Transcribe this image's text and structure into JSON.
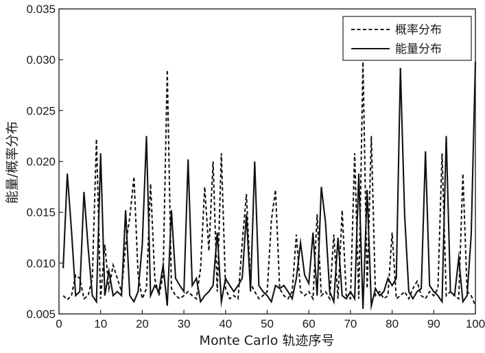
{
  "chart_data": {
    "type": "line",
    "title": "",
    "xlabel": "Monte Carlo 轨迹序号",
    "ylabel": "能量/概率分布",
    "xlim": [
      0,
      100
    ],
    "ylim": [
      0.005,
      0.035
    ],
    "xticks": [
      0,
      10,
      20,
      30,
      40,
      50,
      60,
      70,
      80,
      90,
      100
    ],
    "xtick_labels": [
      "0",
      "10",
      "20",
      "30",
      "40",
      "50",
      "60",
      "70",
      "80",
      "90",
      "100"
    ],
    "yticks": [
      0.005,
      0.01,
      0.015,
      0.02,
      0.025,
      0.03,
      0.035
    ],
    "ytick_labels": [
      "0.005",
      "0.010",
      "0.015",
      "0.020",
      "0.025",
      "0.030",
      "0.035"
    ],
    "grid": false,
    "legend": {
      "position": "top-right"
    },
    "series": [
      {
        "name": "概率分布",
        "style": "dashed",
        "color": "#111111",
        "x": [
          1,
          2,
          3,
          4,
          5,
          6,
          7,
          8,
          9,
          10,
          11,
          12,
          13,
          14,
          15,
          16,
          17,
          18,
          19,
          20,
          21,
          22,
          23,
          24,
          25,
          26,
          27,
          28,
          29,
          30,
          31,
          32,
          33,
          34,
          35,
          36,
          37,
          38,
          39,
          40,
          41,
          42,
          43,
          44,
          45,
          46,
          47,
          48,
          49,
          50,
          51,
          52,
          53,
          54,
          55,
          56,
          57,
          58,
          59,
          60,
          61,
          62,
          63,
          64,
          65,
          66,
          67,
          68,
          69,
          70,
          71,
          72,
          73,
          74,
          75,
          76,
          77,
          78,
          79,
          80,
          81,
          82,
          83,
          84,
          85,
          86,
          87,
          88,
          89,
          90,
          91,
          92,
          93,
          94,
          95,
          96,
          97,
          98,
          99,
          100
        ],
        "y": [
          0.0068,
          0.0064,
          0.0068,
          0.0088,
          0.0085,
          0.0065,
          0.0068,
          0.0085,
          0.0222,
          0.0065,
          0.0118,
          0.0075,
          0.0098,
          0.0085,
          0.0072,
          0.0118,
          0.0145,
          0.0185,
          0.0088,
          0.0065,
          0.0075,
          0.0178,
          0.0085,
          0.0068,
          0.0088,
          0.029,
          0.0075,
          0.0068,
          0.0065,
          0.0068,
          0.0072,
          0.0068,
          0.0065,
          0.0095,
          0.0175,
          0.0112,
          0.02,
          0.0072,
          0.0208,
          0.0075,
          0.0065,
          0.0068,
          0.0065,
          0.012,
          0.0168,
          0.008,
          0.0072,
          0.0065,
          0.0068,
          0.0072,
          0.0142,
          0.0172,
          0.0075,
          0.0068,
          0.0065,
          0.0072,
          0.0128,
          0.0072,
          0.0068,
          0.0072,
          0.0065,
          0.0148,
          0.0068,
          0.0072,
          0.0065,
          0.0128,
          0.0065,
          0.0152,
          0.0068,
          0.0065,
          0.0208,
          0.0065,
          0.0298,
          0.0075,
          0.0225,
          0.0068,
          0.0072,
          0.0065,
          0.0068,
          0.013,
          0.0065,
          0.0068,
          0.0072,
          0.0065,
          0.0075,
          0.0082,
          0.0068,
          0.0065,
          0.0072,
          0.0068,
          0.0075,
          0.0208,
          0.0068,
          0.0072,
          0.0068,
          0.0065,
          0.0188,
          0.0072,
          0.0068,
          0.0058
        ]
      },
      {
        "name": "能量分布",
        "style": "solid",
        "color": "#111111",
        "x": [
          1,
          2,
          3,
          4,
          5,
          6,
          7,
          8,
          9,
          10,
          11,
          12,
          13,
          14,
          15,
          16,
          17,
          18,
          19,
          20,
          21,
          22,
          23,
          24,
          25,
          26,
          27,
          28,
          29,
          30,
          31,
          32,
          33,
          34,
          35,
          36,
          37,
          38,
          39,
          40,
          41,
          42,
          43,
          44,
          45,
          46,
          47,
          48,
          49,
          50,
          51,
          52,
          53,
          54,
          55,
          56,
          57,
          58,
          59,
          60,
          61,
          62,
          63,
          64,
          65,
          66,
          67,
          68,
          69,
          70,
          71,
          72,
          73,
          74,
          75,
          76,
          77,
          78,
          79,
          80,
          81,
          82,
          83,
          84,
          85,
          86,
          87,
          88,
          89,
          90,
          91,
          92,
          93,
          94,
          95,
          96,
          97,
          98,
          99,
          100
        ],
        "y": [
          0.0095,
          0.0188,
          0.0132,
          0.0068,
          0.0072,
          0.017,
          0.0115,
          0.0068,
          0.0062,
          0.0208,
          0.0068,
          0.0092,
          0.0068,
          0.0072,
          0.0068,
          0.0152,
          0.0068,
          0.0062,
          0.0072,
          0.0118,
          0.0225,
          0.0068,
          0.0078,
          0.0072,
          0.0098,
          0.0058,
          0.0152,
          0.0085,
          0.0078,
          0.0072,
          0.0202,
          0.0078,
          0.0085,
          0.0062,
          0.0068,
          0.0072,
          0.0078,
          0.013,
          0.0062,
          0.0085,
          0.0078,
          0.0072,
          0.0078,
          0.0085,
          0.0148,
          0.0072,
          0.02,
          0.0078,
          0.0072,
          0.0068,
          0.0062,
          0.0078,
          0.0075,
          0.0078,
          0.0072,
          0.0065,
          0.0085,
          0.012,
          0.0088,
          0.008,
          0.013,
          0.0068,
          0.0175,
          0.014,
          0.0072,
          0.0062,
          0.0125,
          0.0068,
          0.0065,
          0.0072,
          0.0065,
          0.0188,
          0.0055,
          0.0172,
          0.0058,
          0.0075,
          0.0068,
          0.0072,
          0.0085,
          0.0078,
          0.0085,
          0.0292,
          0.0148,
          0.0072,
          0.0065,
          0.0072,
          0.0075,
          0.021,
          0.0078,
          0.0072,
          0.0068,
          0.0062,
          0.0225,
          0.0072,
          0.0068,
          0.0105,
          0.0062,
          0.0068,
          0.0128,
          0.0298
        ]
      }
    ]
  }
}
